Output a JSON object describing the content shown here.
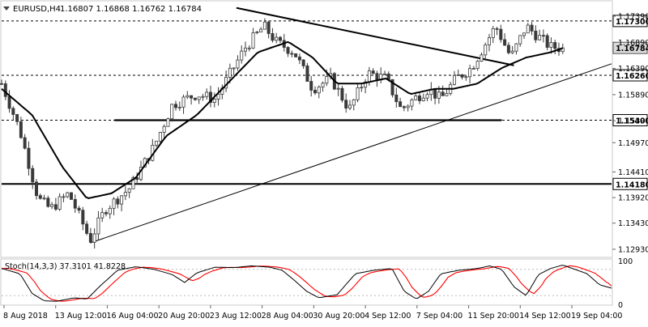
{
  "header": {
    "symbol": "EURUSD,H4",
    "ohlc": "1.16807 1.16868 1.16762 1.16784"
  },
  "chart_data": {
    "type": "candlestick",
    "main_panel": {
      "ylim": [
        1.1279,
        1.1767
      ],
      "ytick_labels": [
        "1.17390",
        "1.16890",
        "1.16390",
        "1.15890",
        "1.15390",
        "1.14970",
        "1.14410",
        "1.13920",
        "1.13430",
        "1.12930"
      ],
      "ytick_values": [
        1.1739,
        1.1689,
        1.1639,
        1.1589,
        1.1539,
        1.1497,
        1.1441,
        1.1392,
        1.1343,
        1.1293
      ],
      "current_price": {
        "label": "1.16784",
        "value": 1.16784
      },
      "levels": [
        {
          "label": "1.17300",
          "value": 1.173,
          "style": "dashed",
          "span": "full"
        },
        {
          "label": "1.16260",
          "value": 1.1626,
          "style": "dashed",
          "span": "full"
        },
        {
          "label": "1.15400",
          "value": 1.154,
          "style": "dashed",
          "span": "full"
        },
        {
          "label": "1.14180",
          "value": 1.1418,
          "style": "solid",
          "span": "full"
        },
        {
          "label": "",
          "value": 1.154,
          "style": "thick",
          "span": [
            0.185,
            0.82
          ]
        }
      ],
      "trendlines": [
        {
          "from": [
            0.385,
            1.1755
          ],
          "to": [
            0.84,
            1.1645
          ],
          "width": 2
        },
        {
          "from": [
            0.145,
            1.1305
          ],
          "to": [
            1.0,
            1.1648
          ],
          "width": 1
        }
      ],
      "candles": {
        "count": 146,
        "anchors": [
          [
            0,
            1.161
          ],
          [
            0.03,
            1.152
          ],
          [
            0.06,
            1.139
          ],
          [
            0.08,
            1.137
          ],
          [
            0.11,
            1.14
          ],
          [
            0.13,
            1.135
          ],
          [
            0.145,
            1.131
          ],
          [
            0.17,
            1.137
          ],
          [
            0.21,
            1.141
          ],
          [
            0.25,
            1.149
          ],
          [
            0.28,
            1.157
          ],
          [
            0.32,
            1.159
          ],
          [
            0.35,
            1.158
          ],
          [
            0.38,
            1.164
          ],
          [
            0.4,
            1.168
          ],
          [
            0.43,
            1.172
          ],
          [
            0.45,
            1.169
          ],
          [
            0.48,
            1.167
          ],
          [
            0.51,
            1.16
          ],
          [
            0.54,
            1.162
          ],
          [
            0.57,
            1.156
          ],
          [
            0.6,
            1.163
          ],
          [
            0.63,
            1.162
          ],
          [
            0.655,
            1.156
          ],
          [
            0.675,
            1.158
          ],
          [
            0.7,
            1.16
          ],
          [
            0.72,
            1.158
          ],
          [
            0.745,
            1.162
          ],
          [
            0.77,
            1.164
          ],
          [
            0.79,
            1.168
          ],
          [
            0.81,
            1.172
          ],
          [
            0.835,
            1.166
          ],
          [
            0.86,
            1.172
          ],
          [
            0.88,
            1.17
          ],
          [
            0.9,
            1.168
          ],
          [
            0.92,
            1.1678
          ]
        ]
      },
      "moving_average": {
        "anchors": [
          [
            0,
            1.16
          ],
          [
            0.05,
            1.155
          ],
          [
            0.1,
            1.145
          ],
          [
            0.14,
            1.139
          ],
          [
            0.18,
            1.14
          ],
          [
            0.22,
            1.143
          ],
          [
            0.27,
            1.151
          ],
          [
            0.32,
            1.155
          ],
          [
            0.37,
            1.161
          ],
          [
            0.42,
            1.167
          ],
          [
            0.47,
            1.169
          ],
          [
            0.51,
            1.166
          ],
          [
            0.55,
            1.161
          ],
          [
            0.59,
            1.161
          ],
          [
            0.63,
            1.162
          ],
          [
            0.67,
            1.159
          ],
          [
            0.71,
            1.16
          ],
          [
            0.74,
            1.16
          ],
          [
            0.78,
            1.161
          ],
          [
            0.82,
            1.164
          ],
          [
            0.86,
            1.166
          ],
          [
            0.9,
            1.167
          ],
          [
            0.92,
            1.1678
          ]
        ]
      }
    },
    "stochastic": {
      "label": "Stoch(14,3,3) 37.3101 41.8228",
      "k": 37.3101,
      "d": 41.8228,
      "ylim": [
        0,
        100
      ],
      "ytick_labels": [
        "100",
        "0"
      ],
      "ytick_values": [
        100,
        0
      ],
      "guide_levels": [
        80,
        20
      ],
      "k_anchors": [
        [
          0,
          82
        ],
        [
          0.03,
          70
        ],
        [
          0.05,
          25
        ],
        [
          0.07,
          8
        ],
        [
          0.09,
          7
        ],
        [
          0.12,
          15
        ],
        [
          0.14,
          12
        ],
        [
          0.16,
          40
        ],
        [
          0.19,
          78
        ],
        [
          0.22,
          86
        ],
        [
          0.25,
          80
        ],
        [
          0.28,
          68
        ],
        [
          0.3,
          50
        ],
        [
          0.32,
          72
        ],
        [
          0.35,
          85
        ],
        [
          0.38,
          84
        ],
        [
          0.41,
          88
        ],
        [
          0.44,
          85
        ],
        [
          0.46,
          78
        ],
        [
          0.48,
          55
        ],
        [
          0.5,
          30
        ],
        [
          0.52,
          15
        ],
        [
          0.55,
          22
        ],
        [
          0.58,
          70
        ],
        [
          0.61,
          78
        ],
        [
          0.64,
          82
        ],
        [
          0.66,
          30
        ],
        [
          0.68,
          12
        ],
        [
          0.7,
          30
        ],
        [
          0.72,
          70
        ],
        [
          0.75,
          78
        ],
        [
          0.78,
          82
        ],
        [
          0.8,
          88
        ],
        [
          0.82,
          80
        ],
        [
          0.84,
          40
        ],
        [
          0.86,
          20
        ],
        [
          0.88,
          68
        ],
        [
          0.9,
          82
        ],
        [
          0.92,
          90
        ],
        [
          0.94,
          80
        ],
        [
          0.96,
          70
        ],
        [
          0.98,
          45
        ],
        [
          1.0,
          37
        ]
      ]
    },
    "x_axis": {
      "tick_labels": [
        "8 Aug 2018",
        "13 Aug 12:00",
        "16 Aug 04:00",
        "20 Aug 20:00",
        "23 Aug 12:00",
        "28 Aug 04:00",
        "30 Aug 20:00",
        "4 Sep 12:00",
        "7 Sep 04:00",
        "11 Sep 20:00",
        "14 Sep 12:00",
        "19 Sep 04:00"
      ]
    },
    "colors": {
      "candle": "#3a3a3a",
      "moving_average": "#000000",
      "stoch_k": "#000000",
      "stoch_d": "#ff0000",
      "level_label_bg": "#ffffff",
      "current_price_bg": "#d9d9d9"
    }
  }
}
